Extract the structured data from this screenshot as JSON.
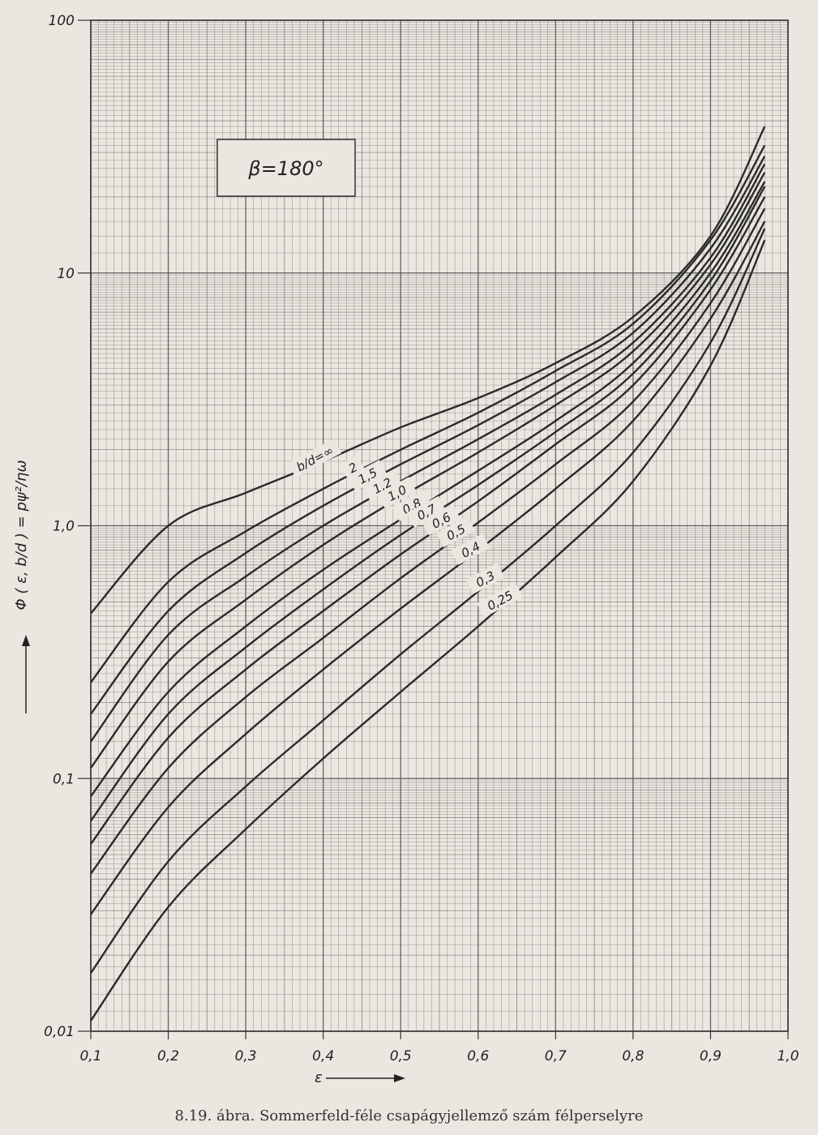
{
  "chart_data": {
    "type": "line",
    "x_scale": "linear",
    "y_scale": "log",
    "xlim": [
      0.1,
      1.0
    ],
    "ylim": [
      0.01,
      100
    ],
    "xlabel": "ε",
    "ylabel": "Φ ( ε, b/d ) = pψ²/ηω",
    "x_ticks": [
      "0,1",
      "0,2",
      "0,3",
      "0,4",
      "0,5",
      "0,6",
      "0,7",
      "0,8",
      "0,9",
      "1,0"
    ],
    "y_ticks": [
      "0,01",
      "0,1",
      "1,0",
      "10",
      "100"
    ],
    "grid": true,
    "annotation": "β=180°",
    "caption": "8.19. ábra. Sommerfeld-féle csapágyjellemző szám félperselyre",
    "series": [
      {
        "name": "b/d=∞",
        "x": [
          0.1,
          0.2,
          0.3,
          0.4,
          0.5,
          0.6,
          0.7,
          0.8,
          0.9,
          0.97
        ],
        "y": [
          0.45,
          1.0,
          1.35,
          1.8,
          2.45,
          3.2,
          4.4,
          6.7,
          14.0,
          38.0
        ]
      },
      {
        "name": "2",
        "x": [
          0.1,
          0.2,
          0.3,
          0.4,
          0.5,
          0.6,
          0.7,
          0.8,
          0.9,
          0.97
        ],
        "y": [
          0.24,
          0.6,
          0.95,
          1.4,
          2.0,
          2.8,
          4.1,
          6.3,
          13.5,
          32.0
        ]
      },
      {
        "name": "1,5",
        "x": [
          0.1,
          0.2,
          0.3,
          0.4,
          0.5,
          0.6,
          0.7,
          0.8,
          0.9,
          0.97
        ],
        "y": [
          0.18,
          0.46,
          0.78,
          1.2,
          1.75,
          2.5,
          3.7,
          5.8,
          12.5,
          29.0
        ]
      },
      {
        "name": "1,2",
        "x": [
          0.1,
          0.2,
          0.3,
          0.4,
          0.5,
          0.6,
          0.7,
          0.8,
          0.9,
          0.97
        ],
        "y": [
          0.14,
          0.37,
          0.63,
          1.0,
          1.5,
          2.2,
          3.3,
          5.3,
          11.5,
          27.0
        ]
      },
      {
        "name": "1,0",
        "x": [
          0.1,
          0.2,
          0.3,
          0.4,
          0.5,
          0.6,
          0.7,
          0.8,
          0.9,
          0.97
        ],
        "y": [
          0.11,
          0.29,
          0.51,
          0.84,
          1.3,
          1.95,
          3.0,
          4.9,
          10.8,
          25.0
        ]
      },
      {
        "name": "0,8",
        "x": [
          0.1,
          0.2,
          0.3,
          0.4,
          0.5,
          0.6,
          0.7,
          0.8,
          0.9,
          0.97
        ],
        "y": [
          0.085,
          0.22,
          0.4,
          0.67,
          1.06,
          1.65,
          2.6,
          4.4,
          10.0,
          23.0
        ]
      },
      {
        "name": "0,7",
        "x": [
          0.1,
          0.2,
          0.3,
          0.4,
          0.5,
          0.6,
          0.7,
          0.8,
          0.9,
          0.97
        ],
        "y": [
          0.068,
          0.18,
          0.33,
          0.56,
          0.92,
          1.45,
          2.35,
          4.0,
          9.3,
          22.0
        ]
      },
      {
        "name": "0,6",
        "x": [
          0.1,
          0.2,
          0.3,
          0.4,
          0.5,
          0.6,
          0.7,
          0.8,
          0.9,
          0.97
        ],
        "y": [
          0.055,
          0.145,
          0.27,
          0.46,
          0.77,
          1.25,
          2.1,
          3.6,
          8.6,
          20.0
        ]
      },
      {
        "name": "0,5",
        "x": [
          0.1,
          0.2,
          0.3,
          0.4,
          0.5,
          0.6,
          0.7,
          0.8,
          0.9,
          0.97
        ],
        "y": [
          0.042,
          0.11,
          0.21,
          0.36,
          0.62,
          1.03,
          1.75,
          3.1,
          7.6,
          18.0
        ]
      },
      {
        "name": "0,4",
        "x": [
          0.1,
          0.2,
          0.3,
          0.4,
          0.5,
          0.6,
          0.7,
          0.8,
          0.9,
          0.97
        ],
        "y": [
          0.029,
          0.077,
          0.15,
          0.27,
          0.47,
          0.8,
          1.4,
          2.6,
          6.6,
          16.0
        ]
      },
      {
        "name": "0,3",
        "x": [
          0.1,
          0.2,
          0.3,
          0.4,
          0.5,
          0.6,
          0.7,
          0.8,
          0.9,
          0.97
        ],
        "y": [
          0.017,
          0.047,
          0.093,
          0.17,
          0.31,
          0.55,
          1.0,
          1.95,
          5.3,
          15.0
        ]
      },
      {
        "name": "0,25",
        "x": [
          0.1,
          0.2,
          0.3,
          0.4,
          0.5,
          0.6,
          0.7,
          0.8,
          0.9,
          0.97
        ],
        "y": [
          0.011,
          0.031,
          0.063,
          0.12,
          0.22,
          0.4,
          0.75,
          1.5,
          4.3,
          13.5
        ]
      }
    ]
  }
}
